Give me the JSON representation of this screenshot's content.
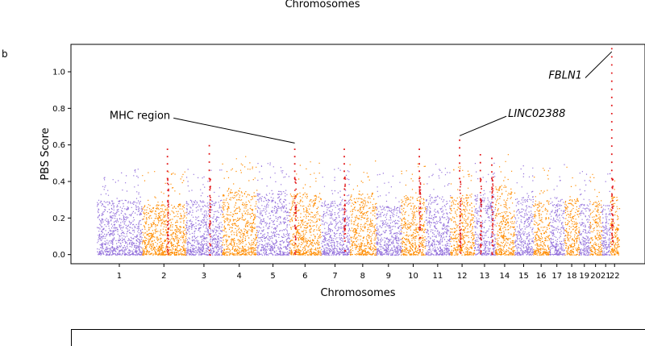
{
  "header": {
    "top_xlabel": "Chromosomes"
  },
  "panel_label": "b",
  "colors": {
    "purple": "#9370DB",
    "orange": "#FF8C00",
    "highlight": "#E31A1C"
  },
  "chart_data": {
    "type": "scatter",
    "subtype": "manhattan",
    "title": "",
    "xlabel": "Chromosomes",
    "ylabel": "PBS Score",
    "ylim": [
      -0.05,
      1.15
    ],
    "yticks": [
      0.0,
      0.2,
      0.4,
      0.6,
      0.8,
      1.0
    ],
    "grid": false,
    "chromosomes": [
      {
        "label": "1",
        "length": 248,
        "color": "purple",
        "typical_max": 0.3
      },
      {
        "label": "2",
        "length": 242,
        "color": "orange",
        "typical_max": 0.28
      },
      {
        "label": "3",
        "length": 198,
        "color": "purple",
        "typical_max": 0.3
      },
      {
        "label": "4",
        "length": 190,
        "color": "orange",
        "typical_max": 0.36
      },
      {
        "label": "5",
        "length": 181,
        "color": "purple",
        "typical_max": 0.34
      },
      {
        "label": "6",
        "length": 171,
        "color": "orange",
        "typical_max": 0.34
      },
      {
        "label": "7",
        "length": 159,
        "color": "purple",
        "typical_max": 0.3
      },
      {
        "label": "8",
        "length": 145,
        "color": "orange",
        "typical_max": 0.34
      },
      {
        "label": "9",
        "length": 138,
        "color": "purple",
        "typical_max": 0.27
      },
      {
        "label": "10",
        "length": 134,
        "color": "orange",
        "typical_max": 0.32
      },
      {
        "label": "11",
        "length": 135,
        "color": "purple",
        "typical_max": 0.33
      },
      {
        "label": "12",
        "length": 133,
        "color": "orange",
        "typical_max": 0.32
      },
      {
        "label": "13",
        "length": 114,
        "color": "purple",
        "typical_max": 0.34
      },
      {
        "label": "14",
        "length": 107,
        "color": "orange",
        "typical_max": 0.38
      },
      {
        "label": "15",
        "length": 102,
        "color": "purple",
        "typical_max": 0.32
      },
      {
        "label": "16",
        "length": 90,
        "color": "orange",
        "typical_max": 0.3
      },
      {
        "label": "17",
        "length": 83,
        "color": "purple",
        "typical_max": 0.32
      },
      {
        "label": "18",
        "length": 80,
        "color": "orange",
        "typical_max": 0.31
      },
      {
        "label": "19",
        "length": 59,
        "color": "purple",
        "typical_max": 0.28
      },
      {
        "label": "20",
        "length": 64,
        "color": "orange",
        "typical_max": 0.3
      },
      {
        "label": "21",
        "length": 47,
        "color": "purple",
        "typical_max": 0.28
      },
      {
        "label": "22",
        "length": 51,
        "color": "orange",
        "typical_max": 0.32
      }
    ],
    "highlighted_loci": [
      {
        "chrom": "2",
        "pos": 0.58,
        "peak": 0.58
      },
      {
        "chrom": "3",
        "pos": 0.65,
        "peak": 0.6
      },
      {
        "chrom": "6",
        "pos": 0.17,
        "peak": 0.58
      },
      {
        "chrom": "7",
        "pos": 0.82,
        "peak": 0.58
      },
      {
        "chrom": "10",
        "pos": 0.75,
        "peak": 0.58
      },
      {
        "chrom": "12",
        "pos": 0.4,
        "peak": 0.63
      },
      {
        "chrom": "13",
        "pos": 0.3,
        "peak": 0.55
      },
      {
        "chrom": "13",
        "pos": 0.85,
        "peak": 0.53
      },
      {
        "chrom": "22",
        "pos": 0.2,
        "peak": 1.13
      }
    ],
    "annotations": [
      {
        "text": "MHC region",
        "italic": false,
        "chrom": "6",
        "pos": 0.17,
        "point_y": 0.61,
        "text_y": 0.76,
        "text_dx": -4.0
      },
      {
        "text": "LINC02388",
        "italic": true,
        "chrom": "12",
        "pos": 0.4,
        "point_y": 0.65,
        "text_y": 0.77,
        "text_dx": 2.0
      },
      {
        "text": "FBLN1",
        "italic": true,
        "chrom": "22",
        "pos": 0.2,
        "point_y": 1.11,
        "text_y": 0.98,
        "text_dx": -3.2
      }
    ]
  }
}
